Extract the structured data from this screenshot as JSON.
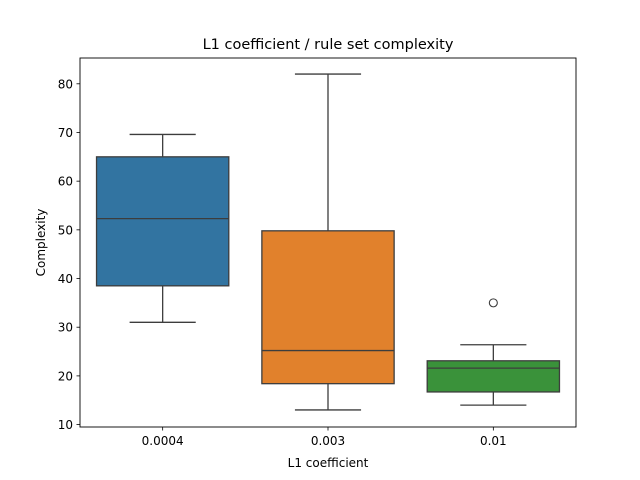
{
  "chart_data": {
    "type": "box",
    "title": "L1 coefficient / rule set complexity",
    "xlabel": "L1 coefficient",
    "ylabel": "Complexity",
    "categories": [
      "0.0004",
      "0.003",
      "0.01"
    ],
    "ylim": [
      9.5,
      85.3
    ],
    "yticks": [
      10,
      20,
      30,
      40,
      50,
      60,
      70,
      80
    ],
    "grid": false,
    "boxes": [
      {
        "category": "0.0004",
        "whisker_low": 31,
        "q1": 38.5,
        "median": 52.3,
        "q3": 65,
        "whisker_high": 69.6,
        "outliers": [],
        "color": "#3274a1"
      },
      {
        "category": "0.003",
        "whisker_low": 13,
        "q1": 18.4,
        "median": 25.2,
        "q3": 49.8,
        "whisker_high": 82,
        "outliers": [],
        "color": "#e1812c"
      },
      {
        "category": "0.01",
        "whisker_low": 14,
        "q1": 16.7,
        "median": 21.6,
        "q3": 23.1,
        "whisker_high": 26.4,
        "outliers": [
          35
        ],
        "color": "#3a923a"
      }
    ]
  }
}
